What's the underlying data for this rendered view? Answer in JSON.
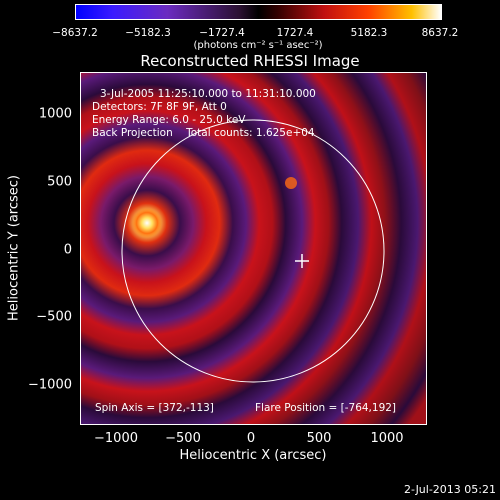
{
  "colorbar": {
    "ticks": [
      "−8637.2",
      "−5182.3",
      "−1727.4",
      "1727.4",
      "5182.3",
      "8637.2"
    ],
    "unit": "(photons cm⁻² s⁻¹ asec⁻²)"
  },
  "title": "Reconstructed RHESSI Image",
  "info": {
    "line1": "3-Jul-2005 11:25:10.000 to 11:31:10.000",
    "line2": "Detectors: 7F 8F 9F, Att 0",
    "line3": "Energy Range: 6.0 - 25.0 keV",
    "line4": "Back Projection    Total counts: 1.625e+04"
  },
  "footer": {
    "spin_axis": "Spin Axis = [372,-113]",
    "flare_position": "Flare Position = [-764,192]"
  },
  "axes": {
    "xlabel": "Heliocentric X (arcsec)",
    "ylabel": "Heliocentric Y (arcsec)",
    "xticks": [
      "−1000",
      "−500",
      "0",
      "500",
      "1000"
    ],
    "yticks": [
      "1000",
      "500",
      "0",
      "−500",
      "−1000"
    ]
  },
  "timestamp": "2-Jul-2013 05:21",
  "colors": {
    "ring_dark": "#3a0d4a",
    "ring_red": "#c8121b",
    "source": "#ffe060"
  }
}
